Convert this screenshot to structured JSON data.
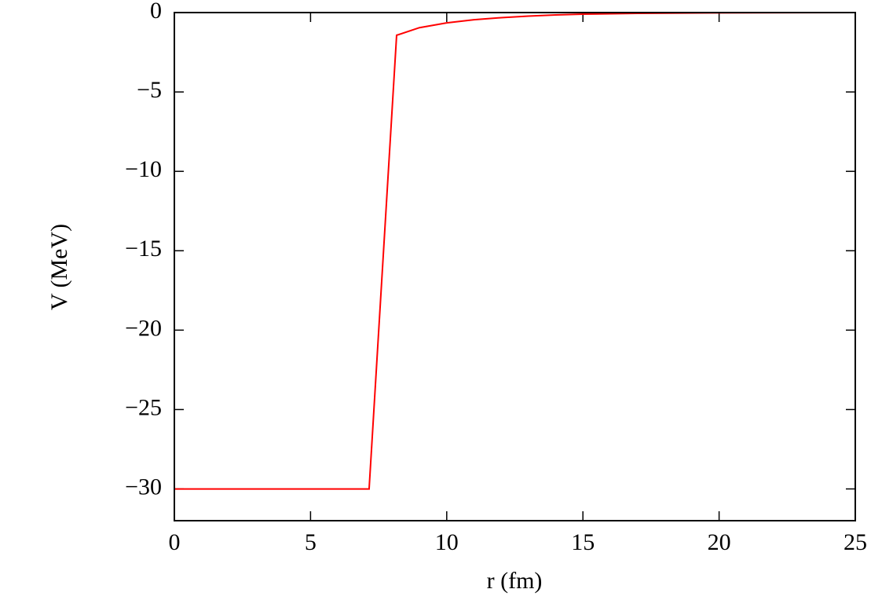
{
  "chart_data": {
    "type": "line",
    "x_label": "r (fm)",
    "y_label": "V (MeV)",
    "x": [
      0,
      7.15,
      8.16,
      9,
      10,
      11,
      12,
      13,
      14,
      15,
      17,
      20,
      25
    ],
    "values": [
      -30,
      -30,
      -1.43,
      -0.95,
      -0.65,
      -0.45,
      -0.32,
      -0.22,
      -0.15,
      -0.1,
      -0.05,
      -0.02,
      0
    ],
    "color": "#ff0000",
    "xlim": [
      0,
      25
    ],
    "xticks": [
      0,
      5,
      10,
      15,
      20,
      25
    ],
    "ylim": [
      -32,
      0
    ],
    "yticks": [
      0,
      {
        "value": -5,
        "label": "−5"
      },
      {
        "value": -10,
        "label": "−10"
      },
      {
        "value": -15,
        "label": "−15"
      },
      {
        "value": -20,
        "label": "−20"
      },
      {
        "value": -25,
        "label": "−25"
      },
      {
        "value": -30,
        "label": "−30"
      }
    ],
    "grid": false
  }
}
